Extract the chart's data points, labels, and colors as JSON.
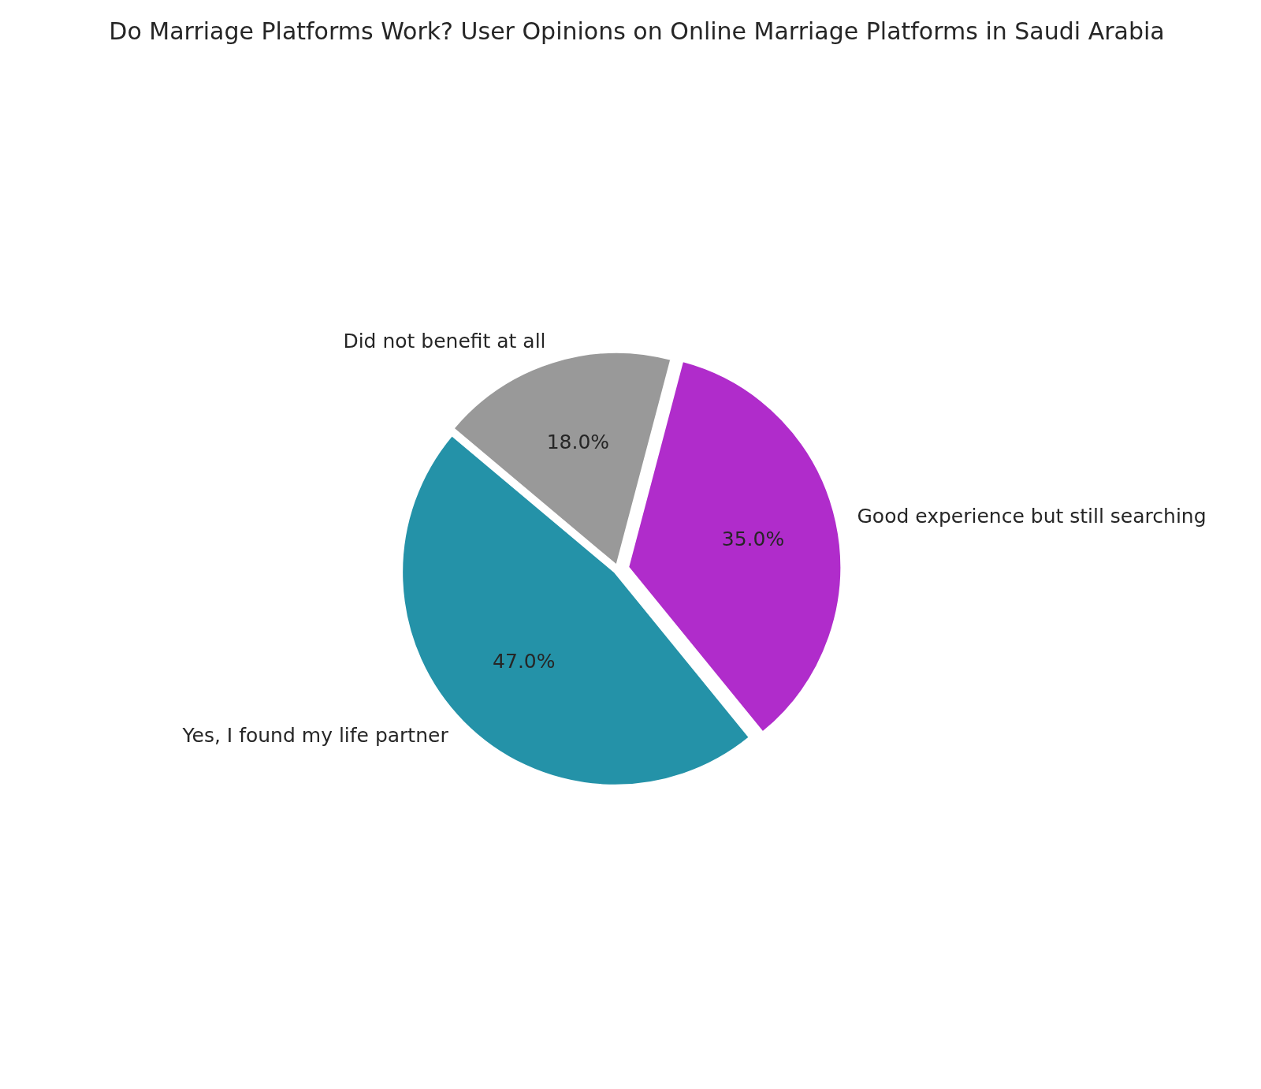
{
  "chart_data": {
    "type": "pie",
    "title": "Do Marriage Platforms Work? User Opinions on Online Marriage Platforms in Saudi Arabia",
    "categories": [
      "Yes, I found my life partner",
      "Good experience but still searching",
      "Did not benefit at all"
    ],
    "values": [
      47,
      35,
      18
    ],
    "colors": [
      "#2492a8",
      "#b02ccb",
      "#999999"
    ],
    "value_labels": [
      "47.0%",
      "35.0%",
      "18.0%"
    ]
  }
}
